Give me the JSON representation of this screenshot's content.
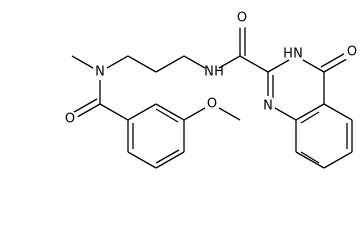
{
  "labels": [
    "N",
    "O",
    "O",
    "N",
    "H",
    "O",
    "N",
    "H",
    "O",
    "N"
  ]
}
